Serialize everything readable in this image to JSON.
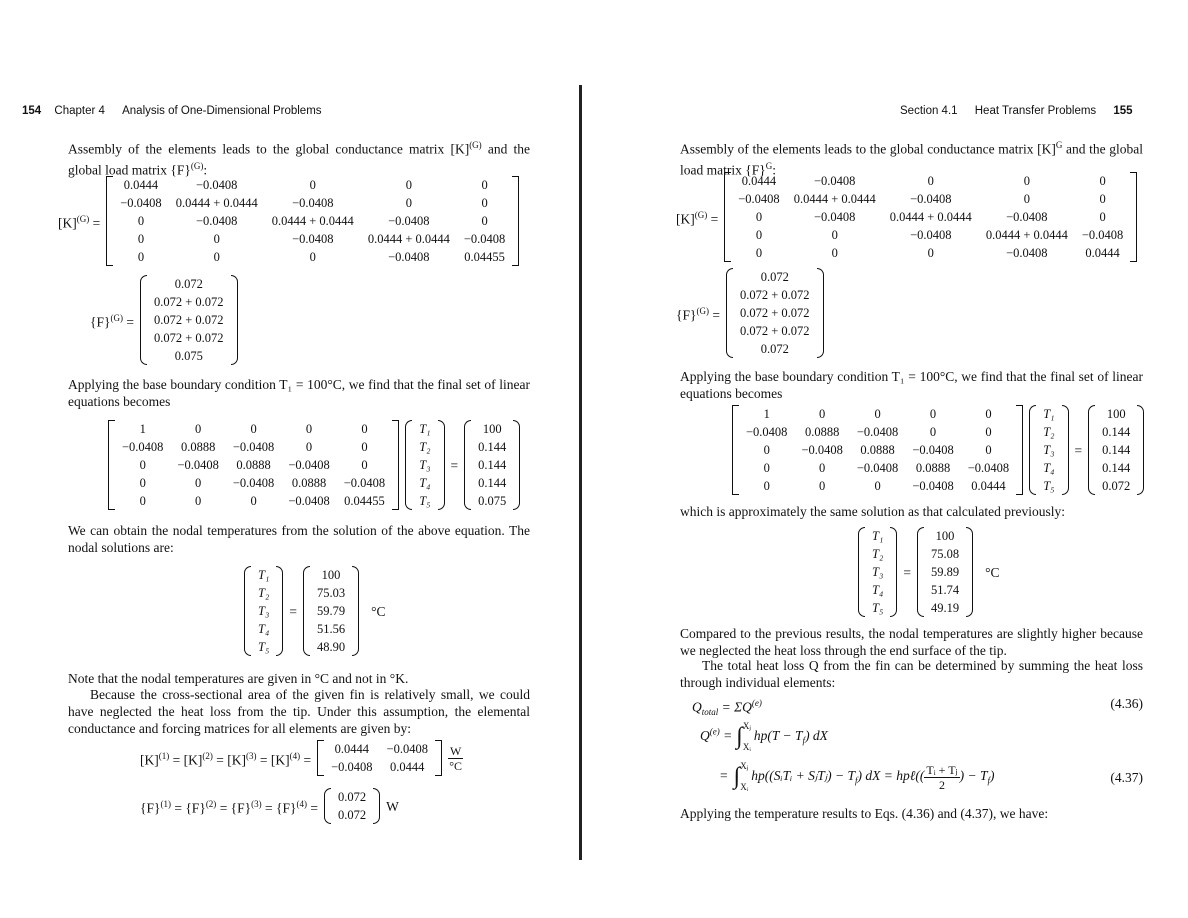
{
  "left_page": {
    "header": {
      "page_number": "154",
      "chapter": "Chapter 4",
      "title": "Analysis of One-Dimensional Problems"
    },
    "p1": [
      "Assembly of the elements leads to the global conductance matrix [K]",
      {
        "sup": "(G)"
      },
      " and the global load matrix {F}",
      {
        "sup": "(G)"
      },
      ":"
    ],
    "k_global": {
      "label": [
        "[K]",
        {
          "sup": "(G)"
        },
        " ="
      ],
      "matrix": [
        [
          "0.0444",
          "−0.0408",
          "0",
          "0",
          "0"
        ],
        [
          "−0.0408",
          "0.0444 + 0.0444",
          "−0.0408",
          "0",
          "0"
        ],
        [
          "0",
          "−0.0408",
          "0.0444 + 0.0444",
          "−0.0408",
          "0"
        ],
        [
          "0",
          "0",
          "−0.0408",
          "0.0444 + 0.0444",
          "−0.0408"
        ],
        [
          "0",
          "0",
          "0",
          "−0.0408",
          "0.04455"
        ]
      ]
    },
    "f_global": {
      "label": [
        "{F}",
        {
          "sup": "(G)"
        },
        " ="
      ],
      "vector": [
        "0.072",
        "0.072 + 0.072",
        "0.072 + 0.072",
        "0.072 + 0.072",
        "0.075"
      ]
    },
    "p2": "Applying the base boundary condition T₁ = 100°C, we find that the final set of linear equations becomes",
    "system": {
      "matrix": [
        [
          "1",
          "0",
          "0",
          "0",
          "0"
        ],
        [
          "−0.0408",
          "0.0888",
          "−0.0408",
          "0",
          "0"
        ],
        [
          "0",
          "−0.0408",
          "0.0888",
          "−0.0408",
          "0"
        ],
        [
          "0",
          "0",
          "−0.0408",
          "0.0888",
          "−0.0408"
        ],
        [
          "0",
          "0",
          "0",
          "−0.0408",
          "0.04455"
        ]
      ],
      "unknowns": [
        "T₁",
        "T₂",
        "T₃",
        "T₄",
        "T₅"
      ],
      "equals": "=",
      "rhs": [
        "100",
        "0.144",
        "0.144",
        "0.144",
        "0.075"
      ]
    },
    "p3": "We can obtain the nodal temperatures from the solution of the above equation. The nodal solutions are:",
    "solution": {
      "unknowns": [
        "T₁",
        "T₂",
        "T₃",
        "T₄",
        "T₅"
      ],
      "equals": "=",
      "values": [
        "100",
        "75.03",
        "59.79",
        "51.56",
        "48.90"
      ],
      "unit": "°C"
    },
    "p4": "Note that the nodal temperatures are given in °C and not in °K.",
    "p5": "Because the cross-sectional area of the given fin is relatively small, we could have neglected the heat loss from the tip. Under this assumption, the elemental conductance and forcing matrices for all elements are given by:",
    "k_element": {
      "label": [
        "[K]",
        {
          "sup": "(1)"
        },
        " = [K]",
        {
          "sup": "(2)"
        },
        " = [K]",
        {
          "sup": "(3)"
        },
        " = [K]",
        {
          "sup": "(4)"
        },
        " ="
      ],
      "matrix": [
        [
          "0.0444",
          "−0.0408"
        ],
        [
          "−0.0408",
          "0.0444"
        ]
      ],
      "unit": {
        "num": "W",
        "den": "°C"
      }
    },
    "f_element": {
      "label": [
        "{F}",
        {
          "sup": "(1)"
        },
        " = {F}",
        {
          "sup": "(2)"
        },
        " = {F}",
        {
          "sup": "(3)"
        },
        " = {F}",
        {
          "sup": "(4)"
        },
        " ="
      ],
      "vector": [
        "0.072",
        "0.072"
      ],
      "unit": "W"
    }
  },
  "right_page": {
    "header": {
      "section": "Section 4.1",
      "title": "Heat Transfer Problems",
      "page_number": "155"
    },
    "p1": [
      "Assembly of the elements leads to the global conductance matrix [K]",
      {
        "sup": "G"
      },
      " and the global load matrix {F}",
      {
        "sup": "G"
      },
      ":"
    ],
    "k_global": {
      "label": [
        "[K]",
        {
          "sup": "(G)"
        },
        " ="
      ],
      "matrix": [
        [
          "0.0444",
          "−0.0408",
          "0",
          "0",
          "0"
        ],
        [
          "−0.0408",
          "0.0444 + 0.0444",
          "−0.0408",
          "0",
          "0"
        ],
        [
          "0",
          "−0.0408",
          "0.0444 + 0.0444",
          "−0.0408",
          "0"
        ],
        [
          "0",
          "0",
          "−0.0408",
          "0.0444 + 0.0444",
          "−0.0408"
        ],
        [
          "0",
          "0",
          "0",
          "−0.0408",
          "0.0444"
        ]
      ]
    },
    "f_global": {
      "label": [
        "{F}",
        {
          "sup": "(G)"
        },
        " ="
      ],
      "vector": [
        "0.072",
        "0.072 + 0.072",
        "0.072 + 0.072",
        "0.072 + 0.072",
        "0.072"
      ]
    },
    "p2": "Applying the base boundary condition T₁ = 100°C, we find that the final set of linear equations becomes",
    "system": {
      "matrix": [
        [
          "1",
          "0",
          "0",
          "0",
          "0"
        ],
        [
          "−0.0408",
          "0.0888",
          "−0.0408",
          "0",
          "0"
        ],
        [
          "0",
          "−0.0408",
          "0.0888",
          "−0.0408",
          "0"
        ],
        [
          "0",
          "0",
          "−0.0408",
          "0.0888",
          "−0.0408"
        ],
        [
          "0",
          "0",
          "0",
          "−0.0408",
          "0.0444"
        ]
      ],
      "unknowns": [
        "T₁",
        "T₂",
        "T₃",
        "T₄",
        "T₅"
      ],
      "equals": "=",
      "rhs": [
        "100",
        "0.144",
        "0.144",
        "0.144",
        "0.072"
      ]
    },
    "p3": "which is approximately the same solution as that calculated previously:",
    "solution": {
      "unknowns": [
        "T₁",
        "T₂",
        "T₃",
        "T₄",
        "T₅"
      ],
      "equals": "=",
      "values": [
        "100",
        "75.08",
        "59.89",
        "51.74",
        "49.19"
      ],
      "unit": "°C"
    },
    "p4": "Compared to the previous results, the nodal temperatures are slightly higher because we neglected the heat loss through the end surface of the tip.",
    "p5": "The total heat loss Q from the fin can be determined by summing the heat loss through individual elements:",
    "eq_4_36": {
      "lhs": [
        "Q",
        {
          "sub": "total"
        },
        " = ΣQ",
        {
          "sup": "(e)"
        }
      ],
      "number": "(4.36)"
    },
    "eq_qe": {
      "lhs": [
        "Q",
        {
          "sup": "(e)"
        },
        " ="
      ],
      "symbol": "∫",
      "lower": "Xᵢ",
      "upper": "Xⱼ",
      "integrand": [
        "hp(T − T",
        {
          "sub": "f"
        },
        ") dX"
      ]
    },
    "eq_4_37": {
      "lhs": "=",
      "symbol": "∫",
      "lower": "Xᵢ",
      "upper": "Xⱼ",
      "integrand": [
        "hp((SᵢTᵢ + SⱼTⱼ) − T",
        {
          "sub": "f"
        },
        ") dX = hpℓ(("
      ],
      "fraction": {
        "num": "Tᵢ + Tⱼ",
        "den": "2"
      },
      "tail": [
        ") − T",
        {
          "sub": "f"
        },
        ")"
      ],
      "number": "(4.37)"
    },
    "p6": "Applying the temperature results to Eqs. (4.36) and (4.37), we have:"
  }
}
